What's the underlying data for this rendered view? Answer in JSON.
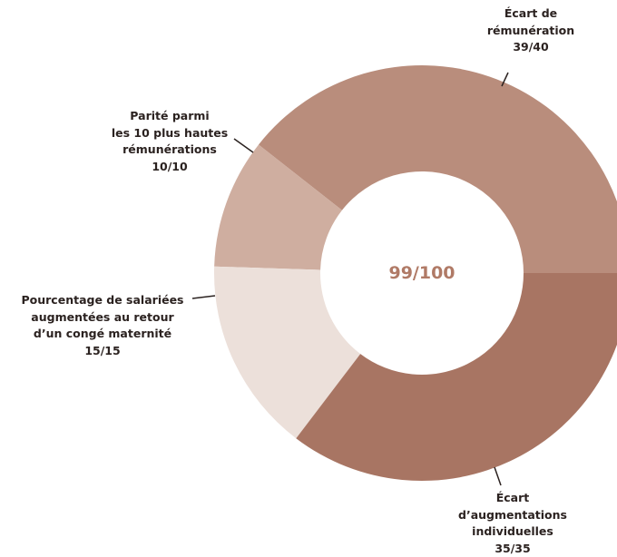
{
  "chart_data": {
    "type": "donut",
    "center_label": "99/100",
    "categories": [
      "Écart de\nrémunération",
      "Parité parmi\nles 10 plus hautes\nrémunérations",
      "Pourcentage de salariées\naugmentées au retour\nd’un congé maternité",
      "Écart\nd’augmentations\nindividuelles"
    ],
    "values": [
      39,
      10,
      15,
      35
    ],
    "value_labels": [
      "39/40",
      "10/10",
      "15/15",
      "35/35"
    ],
    "colors": [
      "#b98d7c",
      "#cfaea0",
      "#ece0da",
      "#a87563"
    ]
  }
}
